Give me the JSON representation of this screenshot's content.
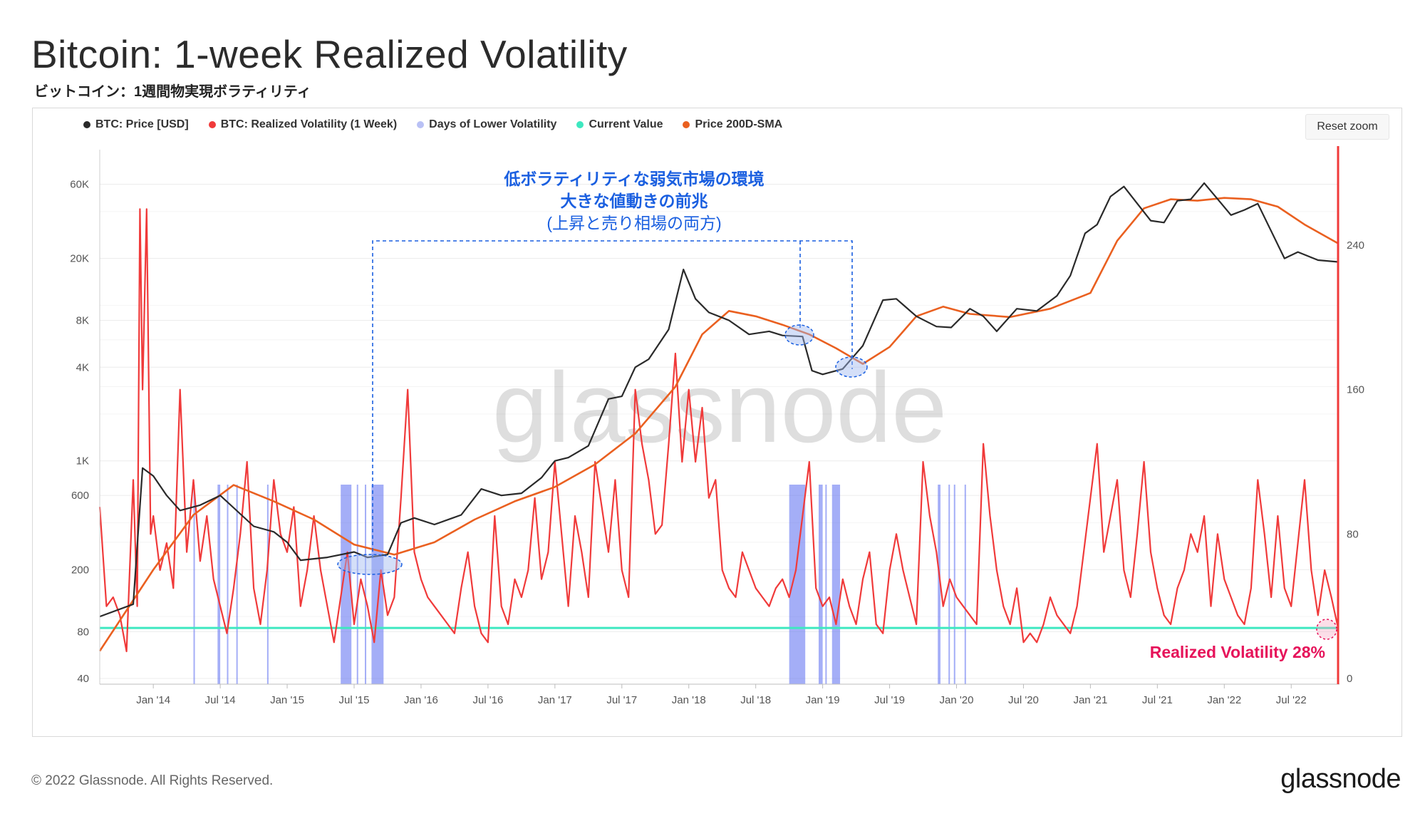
{
  "title": "Bitcoin: 1-week Realized Volatility",
  "subtitle": "ビットコイン：1週間物実現ボラティリティ",
  "reset_zoom": "Reset zoom",
  "watermark": "glassnode",
  "footer": "© 2022 Glassnode. All Rights Reserved.",
  "brand": "glassnode",
  "annotation": {
    "line1": "低ボラティリティな弱気市場の環境",
    "line2": "大きな値動きの前兆",
    "line3": "(上昇と売り相場の両方)"
  },
  "callout": "Realized Volatility 28%",
  "colors": {
    "price": "#2a2a2a",
    "volatility": "#f03a3a",
    "lower_vol": "#b9c1f5",
    "lower_vol_bar": "#5a6cf0",
    "current": "#3ee8c0",
    "sma": "#ea6020",
    "annotation": "#1a5fe0",
    "callout": "#e6135a"
  },
  "chart_data": {
    "type": "line",
    "legend": [
      {
        "name": "BTC: Price [USD]",
        "color": "#2a2a2a"
      },
      {
        "name": "BTC: Realized Volatility (1 Week)",
        "color": "#f03a3a"
      },
      {
        "name": "Days of Lower Volatility",
        "color": "#b9c1f5"
      },
      {
        "name": "Current Value",
        "color": "#3ee8c0"
      },
      {
        "name": "Price 200D-SMA",
        "color": "#ea6020"
      }
    ],
    "x_ticks": [
      "Jan '14",
      "Jul '14",
      "Jan '15",
      "Jul '15",
      "Jan '16",
      "Jul '16",
      "Jan '17",
      "Jul '17",
      "Jan '18",
      "Jul '18",
      "Jan '19",
      "Jul '19",
      "Jan '20",
      "Jul '20",
      "Jan '21",
      "Jul '21",
      "Jan '22",
      "Jul '22"
    ],
    "x_range": [
      "2013-08",
      "2022-11"
    ],
    "y_left": {
      "scale": "log",
      "ticks": [
        "40",
        "80",
        "200",
        "600",
        "1K",
        "4K",
        "8K",
        "20K",
        "60K"
      ],
      "tick_values": [
        40,
        80,
        200,
        600,
        1000,
        4000,
        8000,
        20000,
        60000
      ]
    },
    "y_right": {
      "scale": "linear",
      "ticks": [
        "0",
        "80",
        "160",
        "240"
      ],
      "range": [
        0,
        300
      ]
    },
    "current_value": 28,
    "price_series": {
      "name": "BTC: Price [USD]",
      "x": [
        2013.6,
        2013.85,
        2013.92,
        2014.0,
        2014.1,
        2014.2,
        2014.35,
        2014.5,
        2014.6,
        2014.75,
        2014.9,
        2015.0,
        2015.1,
        2015.3,
        2015.5,
        2015.6,
        2015.75,
        2015.85,
        2015.95,
        2016.1,
        2016.3,
        2016.45,
        2016.6,
        2016.75,
        2016.9,
        2017.0,
        2017.1,
        2017.25,
        2017.4,
        2017.5,
        2017.6,
        2017.7,
        2017.85,
        2017.96,
        2018.05,
        2018.15,
        2018.3,
        2018.45,
        2018.6,
        2018.7,
        2018.85,
        2018.92,
        2019.0,
        2019.15,
        2019.3,
        2019.45,
        2019.55,
        2019.7,
        2019.85,
        2019.96,
        2020.1,
        2020.2,
        2020.3,
        2020.45,
        2020.6,
        2020.75,
        2020.85,
        2020.96,
        2021.05,
        2021.15,
        2021.25,
        2021.35,
        2021.45,
        2021.55,
        2021.65,
        2021.75,
        2021.85,
        2021.96,
        2022.05,
        2022.15,
        2022.25,
        2022.35,
        2022.45,
        2022.55,
        2022.7,
        2022.85
      ],
      "y": [
        100,
        120,
        900,
        800,
        600,
        480,
        520,
        600,
        500,
        380,
        350,
        300,
        230,
        240,
        260,
        240,
        250,
        400,
        430,
        390,
        450,
        660,
        600,
        620,
        780,
        1000,
        1050,
        1250,
        2500,
        2600,
        4000,
        4500,
        7000,
        17000,
        11000,
        9000,
        8000,
        6500,
        6800,
        6400,
        6300,
        3800,
        3600,
        3900,
        5500,
        10800,
        11000,
        8500,
        7300,
        7200,
        9500,
        8500,
        6800,
        9500,
        9200,
        11500,
        15500,
        29000,
        33000,
        50000,
        58000,
        45000,
        35000,
        34000,
        47000,
        48000,
        61000,
        47000,
        38000,
        41000,
        45000,
        30000,
        20000,
        22000,
        19500,
        19000
      ]
    },
    "sma_series": {
      "name": "Price 200D-SMA",
      "x": [
        2013.6,
        2014.0,
        2014.3,
        2014.6,
        2014.9,
        2015.2,
        2015.5,
        2015.8,
        2016.1,
        2016.4,
        2016.7,
        2017.0,
        2017.3,
        2017.6,
        2017.9,
        2018.1,
        2018.3,
        2018.5,
        2018.7,
        2018.9,
        2019.1,
        2019.3,
        2019.5,
        2019.7,
        2019.9,
        2020.1,
        2020.4,
        2020.7,
        2021.0,
        2021.2,
        2021.4,
        2021.6,
        2021.8,
        2022.0,
        2022.2,
        2022.4,
        2022.6,
        2022.85
      ],
      "y": [
        60,
        200,
        450,
        700,
        550,
        420,
        290,
        250,
        300,
        420,
        550,
        680,
        950,
        1500,
        3000,
        6500,
        9200,
        8500,
        7500,
        6500,
        5300,
        4200,
        5400,
        8500,
        9800,
        8800,
        8400,
        9500,
        12000,
        26000,
        42000,
        48000,
        47000,
        49000,
        48000,
        43000,
        33000,
        25000
      ]
    },
    "volatility_series": {
      "name": "BTC: Realized Volatility (1 Week)",
      "x": [
        2013.6,
        2013.65,
        2013.7,
        2013.75,
        2013.8,
        2013.85,
        2013.88,
        2013.9,
        2013.92,
        2013.95,
        2013.98,
        2014.0,
        2014.05,
        2014.1,
        2014.15,
        2014.2,
        2014.25,
        2014.3,
        2014.35,
        2014.4,
        2014.45,
        2014.5,
        2014.55,
        2014.6,
        2014.65,
        2014.7,
        2014.75,
        2014.8,
        2014.85,
        2014.9,
        2014.95,
        2015.0,
        2015.05,
        2015.1,
        2015.15,
        2015.2,
        2015.25,
        2015.3,
        2015.35,
        2015.4,
        2015.45,
        2015.5,
        2015.55,
        2015.6,
        2015.65,
        2015.7,
        2015.75,
        2015.8,
        2015.85,
        2015.9,
        2015.95,
        2016.0,
        2016.05,
        2016.1,
        2016.15,
        2016.2,
        2016.25,
        2016.3,
        2016.35,
        2016.4,
        2016.45,
        2016.5,
        2016.55,
        2016.6,
        2016.65,
        2016.7,
        2016.75,
        2016.8,
        2016.85,
        2016.9,
        2016.95,
        2017.0,
        2017.05,
        2017.1,
        2017.15,
        2017.2,
        2017.25,
        2017.3,
        2017.35,
        2017.4,
        2017.45,
        2017.5,
        2017.55,
        2017.6,
        2017.65,
        2017.7,
        2017.75,
        2017.8,
        2017.85,
        2017.9,
        2017.95,
        2018.0,
        2018.05,
        2018.1,
        2018.15,
        2018.2,
        2018.25,
        2018.3,
        2018.35,
        2018.4,
        2018.45,
        2018.5,
        2018.55,
        2018.6,
        2018.65,
        2018.7,
        2018.75,
        2018.8,
        2018.85,
        2018.9,
        2018.95,
        2019.0,
        2019.05,
        2019.1,
        2019.15,
        2019.2,
        2019.25,
        2019.3,
        2019.35,
        2019.4,
        2019.45,
        2019.5,
        2019.55,
        2019.6,
        2019.65,
        2019.7,
        2019.75,
        2019.8,
        2019.85,
        2019.9,
        2019.95,
        2020.0,
        2020.05,
        2020.1,
        2020.15,
        2020.2,
        2020.25,
        2020.3,
        2020.35,
        2020.4,
        2020.45,
        2020.5,
        2020.55,
        2020.6,
        2020.65,
        2020.7,
        2020.75,
        2020.8,
        2020.85,
        2020.9,
        2020.95,
        2021.0,
        2021.05,
        2021.1,
        2021.15,
        2021.2,
        2021.25,
        2021.3,
        2021.35,
        2021.4,
        2021.45,
        2021.5,
        2021.55,
        2021.6,
        2021.65,
        2021.7,
        2021.75,
        2021.8,
        2021.85,
        2021.9,
        2021.95,
        2022.0,
        2022.05,
        2022.1,
        2022.15,
        2022.2,
        2022.25,
        2022.3,
        2022.35,
        2022.4,
        2022.45,
        2022.5,
        2022.55,
        2022.6,
        2022.65,
        2022.7,
        2022.75,
        2022.8,
        2022.85
      ],
      "y": [
        95,
        40,
        45,
        35,
        15,
        110,
        40,
        260,
        160,
        260,
        80,
        90,
        60,
        75,
        50,
        160,
        70,
        110,
        65,
        90,
        55,
        40,
        25,
        50,
        80,
        120,
        50,
        30,
        60,
        110,
        80,
        70,
        95,
        40,
        60,
        90,
        60,
        40,
        20,
        45,
        70,
        30,
        55,
        40,
        20,
        60,
        35,
        45,
        100,
        160,
        70,
        55,
        45,
        40,
        35,
        30,
        25,
        50,
        70,
        40,
        25,
        20,
        90,
        40,
        30,
        55,
        45,
        60,
        100,
        55,
        70,
        120,
        80,
        40,
        90,
        70,
        45,
        120,
        95,
        70,
        110,
        60,
        45,
        160,
        130,
        110,
        80,
        85,
        130,
        180,
        120,
        160,
        120,
        150,
        100,
        110,
        60,
        50,
        45,
        70,
        60,
        50,
        45,
        40,
        50,
        55,
        45,
        60,
        90,
        120,
        50,
        40,
        45,
        30,
        55,
        40,
        30,
        55,
        70,
        30,
        25,
        60,
        80,
        60,
        45,
        30,
        120,
        90,
        70,
        40,
        55,
        45,
        40,
        35,
        30,
        130,
        90,
        60,
        40,
        30,
        50,
        20,
        25,
        20,
        30,
        45,
        35,
        30,
        25,
        40,
        70,
        100,
        130,
        70,
        90,
        110,
        60,
        45,
        80,
        120,
        70,
        50,
        35,
        30,
        50,
        60,
        80,
        70,
        90,
        40,
        80,
        55,
        45,
        35,
        30,
        50,
        110,
        80,
        45,
        90,
        50,
        40,
        75,
        110,
        60,
        35,
        60,
        45,
        28
      ]
    },
    "lower_volatility_bands": [
      [
        2014.3,
        2014.31
      ],
      [
        2014.48,
        2014.5
      ],
      [
        2014.55,
        2014.56
      ],
      [
        2014.62,
        2014.63
      ],
      [
        2014.85,
        2014.86
      ],
      [
        2015.4,
        2015.48
      ],
      [
        2015.52,
        2015.53
      ],
      [
        2015.58,
        2015.59
      ],
      [
        2015.63,
        2015.72
      ],
      [
        2018.75,
        2018.87
      ],
      [
        2018.97,
        2019.0
      ],
      [
        2019.02,
        2019.03
      ],
      [
        2019.07,
        2019.13
      ],
      [
        2019.86,
        2019.88
      ],
      [
        2019.94,
        2019.95
      ],
      [
        2019.98,
        2019.99
      ],
      [
        2020.06,
        2020.07
      ]
    ]
  }
}
